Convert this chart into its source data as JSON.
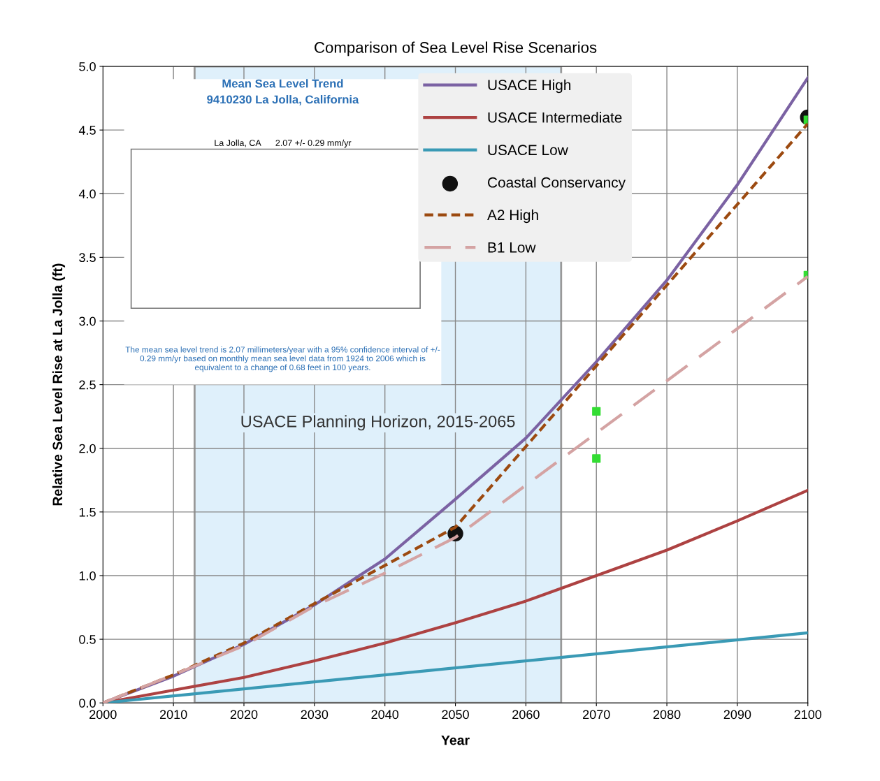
{
  "chart_data": {
    "type": "line",
    "title": "Comparison of Sea Level Rise Scenarios",
    "xlabel": "Year",
    "ylabel": "Relative Sea Level Rise at La Jolla (ft)",
    "xlim": [
      2000,
      2100
    ],
    "xticks": [
      2000,
      2010,
      2020,
      2030,
      2040,
      2050,
      2060,
      2070,
      2080,
      2090,
      2100
    ],
    "ylim": [
      0,
      5
    ],
    "yticks": [
      {
        "value": 0,
        "label": "0.0"
      },
      {
        "value": 0.5,
        "label": "0.5"
      },
      {
        "value": 1,
        "label": "1.0"
      },
      {
        "value": 1.5,
        "label": "1.5"
      },
      {
        "value": 2,
        "label": "2.0"
      },
      {
        "value": 2.5,
        "label": "2.5"
      },
      {
        "value": 3,
        "label": "3.0"
      },
      {
        "value": 3.5,
        "label": "3.5"
      },
      {
        "value": 4,
        "label": "4.0"
      },
      {
        "value": 4.5,
        "label": "4.5"
      },
      {
        "value": 5,
        "label": "5.0"
      }
    ],
    "grid": true,
    "legend": "top right",
    "series": [
      {
        "name": "USACE High",
        "color": "#7b62a3",
        "line_style": "solid",
        "x": [
          2000,
          2010,
          2020,
          2030,
          2040,
          2050,
          2060,
          2070,
          2080,
          2090,
          2100
        ],
        "values": [
          0,
          0.21,
          0.46,
          0.77,
          1.13,
          1.6,
          2.08,
          2.68,
          3.32,
          4.07,
          4.91
        ]
      },
      {
        "name": "USACE Intermediate",
        "color": "#ad4242",
        "line_style": "solid",
        "x": [
          2000,
          2010,
          2020,
          2030,
          2040,
          2050,
          2060,
          2070,
          2080,
          2090,
          2100
        ],
        "values": [
          0,
          0.1,
          0.2,
          0.33,
          0.47,
          0.63,
          0.8,
          1.0,
          1.2,
          1.43,
          1.67
        ]
      },
      {
        "name": "USACE Low",
        "color": "#3a9ab5",
        "line_style": "solid",
        "x": [
          2000,
          2100
        ],
        "values": [
          0,
          0.55
        ]
      },
      {
        "name": "Coastal Conservancy",
        "type": "scatter",
        "marker": "circle",
        "color": "#111111",
        "x": [
          2050,
          2100
        ],
        "values": [
          1.33,
          4.6
        ]
      },
      {
        "name": "A2 High",
        "color": "#9c4a10",
        "line_style": "dotted",
        "x": [
          2000,
          2010,
          2020,
          2030,
          2040,
          2050,
          2100
        ],
        "values": [
          0,
          0.22,
          0.47,
          0.78,
          1.08,
          1.38,
          4.55
        ]
      },
      {
        "name": "B1 Low",
        "color": "#d4a3a3",
        "line_style": "dashed",
        "x": [
          2000,
          2010,
          2020,
          2030,
          2040,
          2050,
          2100
        ],
        "values": [
          0,
          0.22,
          0.45,
          0.76,
          1.02,
          1.3,
          3.35
        ]
      },
      {
        "type": "scatter",
        "marker": "square",
        "color": "#33dd33",
        "x": [
          2070,
          2070,
          2100,
          2100
        ],
        "values": [
          2.29,
          1.92,
          4.58,
          3.36
        ]
      }
    ],
    "bands": [
      {
        "axis": "x",
        "from": 2013,
        "to": 2065,
        "label": "USACE Planning Horizon, 2015-2065",
        "color": "#dff0fb"
      }
    ],
    "annotations": [
      "Mean Sea Level Trend",
      "9410230 La Jolla, California",
      "La Jolla, CA      2.07 +/- 0.29 mm/yr",
      "The mean sea level trend is 2.07 millimeters/year with a 95% confidence interval of +/- 0.29 mm/yr based on monthly mean sea level data from 1924 to 2006 which is equivalent to a change of 0.68 feet in 100 years."
    ]
  }
}
